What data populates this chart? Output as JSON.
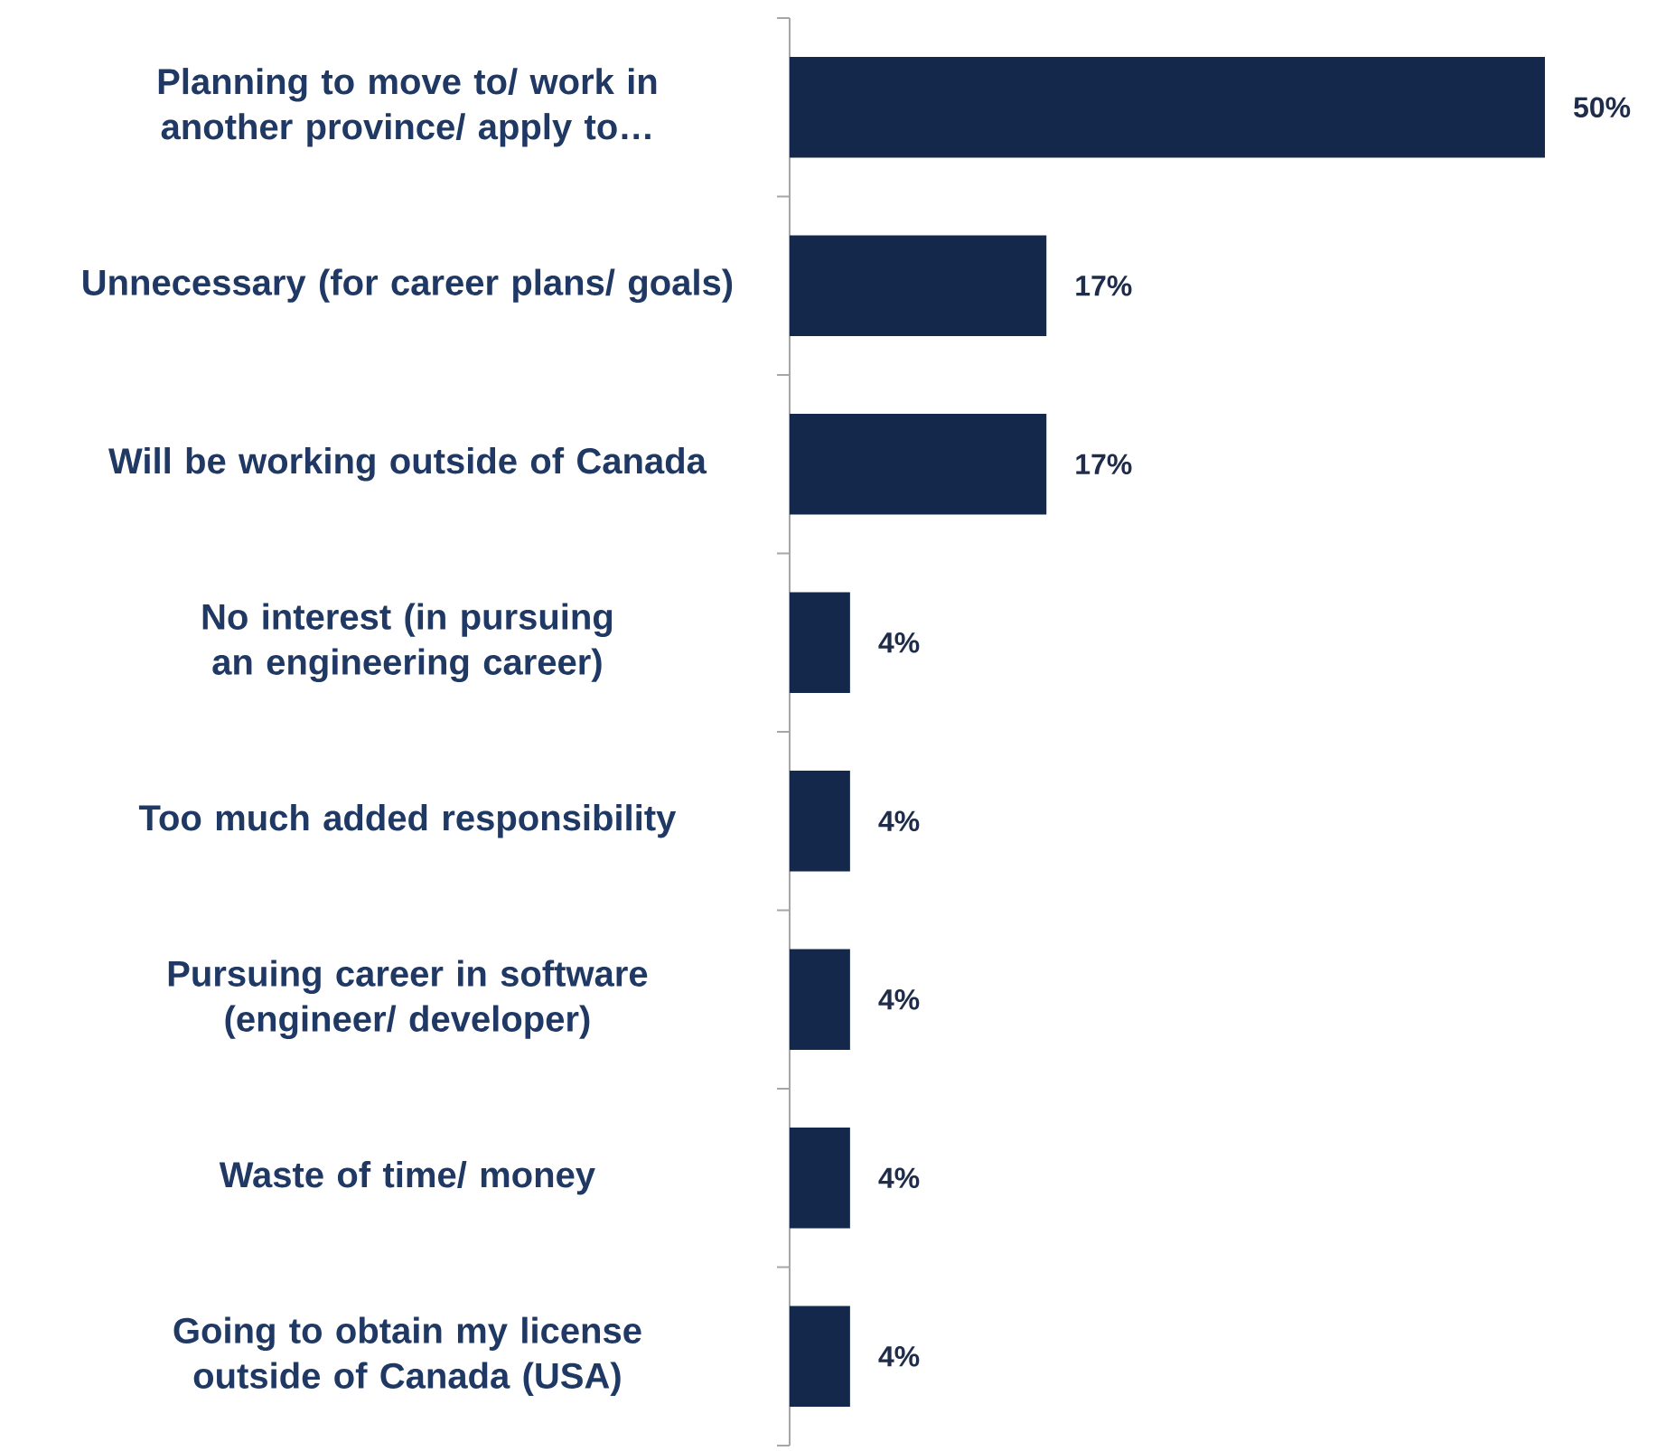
{
  "chart_data": {
    "type": "bar",
    "orientation": "horizontal",
    "categories": [
      "Planning to move to/ work in another province/ apply to…",
      "Unnecessary (for career plans/ goals)",
      "Will be working outside of Canada",
      "No interest (in pursuing an engineering career)",
      "Too much added responsibility",
      "Pursuing career in software (engineer/ developer)",
      "Waste of time/ money",
      "Going to obtain my license outside of Canada (USA)"
    ],
    "values": [
      50,
      17,
      17,
      4,
      4,
      4,
      4,
      4
    ],
    "value_labels": [
      "50%",
      "17%",
      "17%",
      "4%",
      "4%",
      "4%",
      "4%",
      "4%"
    ],
    "color": "#14284b"
  }
}
